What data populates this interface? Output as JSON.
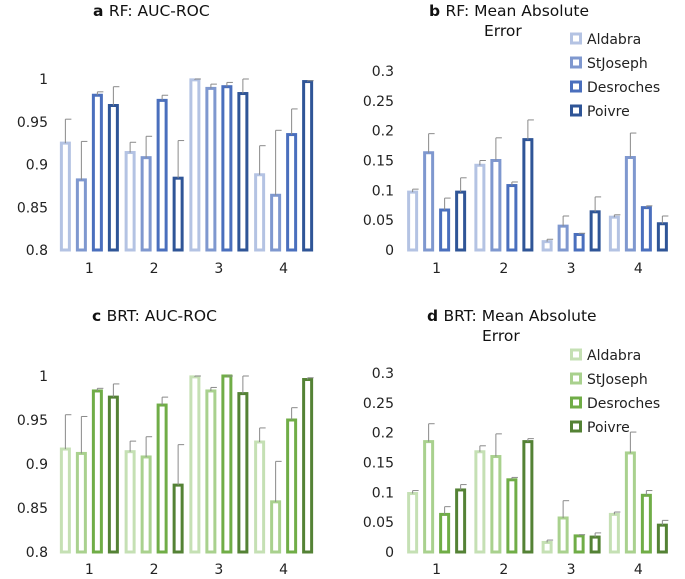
{
  "chart_data": [
    {
      "panel": "a",
      "type": "bar",
      "title": "RF: AUC-ROC",
      "title_lines": [
        "RF: AUC-ROC"
      ],
      "xlabel": "",
      "ylabel": "",
      "categories": [
        "1",
        "2",
        "3",
        "4"
      ],
      "ylim": [
        0.8,
        1.0
      ],
      "yticks": [
        "0.8",
        "0.85",
        "0.9",
        "0.95",
        "1"
      ],
      "show_legend": false,
      "series": [
        {
          "name": "Aldabra",
          "color": "#b4c3e3",
          "values": [
            0.925,
            0.914,
            0.999,
            0.888
          ],
          "errors": [
            0.028,
            0.012,
            0.001,
            0.034
          ]
        },
        {
          "name": "StJoseph",
          "color": "#7f98cf",
          "values": [
            0.882,
            0.908,
            0.989,
            0.864
          ],
          "errors": [
            0.045,
            0.025,
            0.005,
            0.076
          ]
        },
        {
          "name": "Desroches",
          "color": "#4a6fbd",
          "values": [
            0.981,
            0.975,
            0.991,
            0.935
          ],
          "errors": [
            0.004,
            0.006,
            0.005,
            0.03
          ]
        },
        {
          "name": "Poivre",
          "color": "#2f5597",
          "values": [
            0.969,
            0.884,
            0.983,
            0.997
          ],
          "errors": [
            0.022,
            0.044,
            0.017,
            0.001
          ]
        }
      ]
    },
    {
      "panel": "b",
      "type": "bar",
      "title": "RF: Mean Absolute Error",
      "title_lines": [
        "RF: Mean Absolute",
        "Error"
      ],
      "xlabel": "",
      "ylabel": "",
      "categories": [
        "1",
        "2",
        "3",
        "4"
      ],
      "ylim": [
        0,
        0.3
      ],
      "yticks": [
        "0",
        "0.05",
        "0.1",
        "0.15",
        "0.2",
        "0.25",
        "0.3"
      ],
      "show_legend": true,
      "series": [
        {
          "name": "Aldabra",
          "color": "#b4c3e3",
          "values": [
            0.097,
            0.142,
            0.014,
            0.055
          ],
          "errors": [
            0.005,
            0.008,
            0.004,
            0.004
          ]
        },
        {
          "name": "StJoseph",
          "color": "#7f98cf",
          "values": [
            0.163,
            0.15,
            0.04,
            0.155
          ],
          "errors": [
            0.032,
            0.038,
            0.017,
            0.041
          ]
        },
        {
          "name": "Desroches",
          "color": "#4a6fbd",
          "values": [
            0.067,
            0.108,
            0.026,
            0.071
          ],
          "errors": [
            0.02,
            0.006,
            0.002,
            0.003
          ]
        },
        {
          "name": "Poivre",
          "color": "#2f5597",
          "values": [
            0.097,
            0.185,
            0.064,
            0.044
          ],
          "errors": [
            0.024,
            0.033,
            0.025,
            0.013
          ]
        }
      ]
    },
    {
      "panel": "c",
      "type": "bar",
      "title": "BRT: AUC-ROC",
      "title_lines": [
        "BRT: AUC-ROC"
      ],
      "xlabel": "",
      "ylabel": "",
      "categories": [
        "1",
        "2",
        "3",
        "4"
      ],
      "ylim": [
        0.8,
        1.0
      ],
      "yticks": [
        "0.8",
        "0.85",
        "0.9",
        "0.95",
        "1"
      ],
      "show_legend": false,
      "series": [
        {
          "name": "Aldabra",
          "color": "#c5e0b4",
          "values": [
            0.917,
            0.914,
            0.999,
            0.925
          ],
          "errors": [
            0.039,
            0.012,
            0.001,
            0.016
          ]
        },
        {
          "name": "StJoseph",
          "color": "#a9d18e",
          "values": [
            0.912,
            0.908,
            0.983,
            0.857
          ],
          "errors": [
            0.042,
            0.023,
            0.004,
            0.046
          ]
        },
        {
          "name": "Desroches",
          "color": "#70ad47",
          "values": [
            0.983,
            0.967,
            1.0,
            0.95
          ],
          "errors": [
            0.003,
            0.009,
            0.0,
            0.014
          ]
        },
        {
          "name": "Poivre",
          "color": "#548235",
          "values": [
            0.976,
            0.876,
            0.98,
            0.996
          ],
          "errors": [
            0.015,
            0.046,
            0.02,
            0.002
          ]
        }
      ]
    },
    {
      "panel": "d",
      "type": "bar",
      "title": "BRT: Mean Absolute Error",
      "title_lines": [
        "BRT: Mean Absolute",
        "Error"
      ],
      "xlabel": "",
      "ylabel": "",
      "categories": [
        "1",
        "2",
        "3",
        "4"
      ],
      "ylim": [
        0,
        0.3
      ],
      "yticks": [
        "0",
        "0.05",
        "0.1",
        "0.15",
        "0.2",
        "0.25",
        "0.3"
      ],
      "show_legend": true,
      "series": [
        {
          "name": "Aldabra",
          "color": "#c5e0b4",
          "values": [
            0.098,
            0.168,
            0.016,
            0.063
          ],
          "errors": [
            0.005,
            0.01,
            0.004,
            0.004
          ]
        },
        {
          "name": "StJoseph",
          "color": "#a9d18e",
          "values": [
            0.185,
            0.16,
            0.057,
            0.166
          ],
          "errors": [
            0.03,
            0.038,
            0.029,
            0.035
          ]
        },
        {
          "name": "Desroches",
          "color": "#70ad47",
          "values": [
            0.063,
            0.121,
            0.027,
            0.095
          ],
          "errors": [
            0.013,
            0.004,
            0.002,
            0.008
          ]
        },
        {
          "name": "Poivre",
          "color": "#548235",
          "values": [
            0.104,
            0.185,
            0.025,
            0.045
          ],
          "errors": [
            0.009,
            0.005,
            0.007,
            0.008
          ]
        }
      ]
    }
  ]
}
